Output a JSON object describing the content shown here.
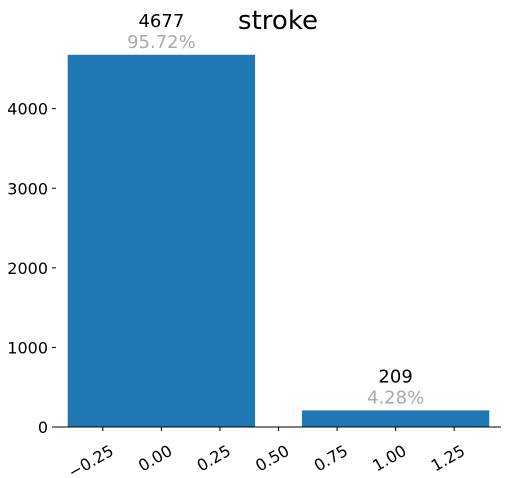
{
  "chart_data": {
    "type": "bar",
    "title": "stroke",
    "xlabel": "",
    "ylabel": "",
    "x": [
      0,
      1
    ],
    "values": [
      4677,
      209
    ],
    "count_labels": [
      "4677",
      "209"
    ],
    "percent_labels": [
      "95.72%",
      "4.28%"
    ],
    "bar_width": 0.8,
    "xlim": [
      -0.45,
      1.45
    ],
    "ylim": [
      0,
      4800
    ],
    "xticks": [
      -0.25,
      0.0,
      0.25,
      0.5,
      0.75,
      1.0,
      1.25
    ],
    "xtick_labels": [
      "−0.25",
      "0.00",
      "0.25",
      "0.50",
      "0.75",
      "1.00",
      "1.25"
    ],
    "yticks": [
      0,
      1000,
      2000,
      3000,
      4000
    ],
    "ytick_labels": [
      "0",
      "1000",
      "2000",
      "3000",
      "4000"
    ],
    "grid": false,
    "legend": "none",
    "colors": {
      "bar": "#1f77b4",
      "count_text": "#000000",
      "percent_text": "#a9a9a9",
      "axis": "#000000"
    }
  }
}
